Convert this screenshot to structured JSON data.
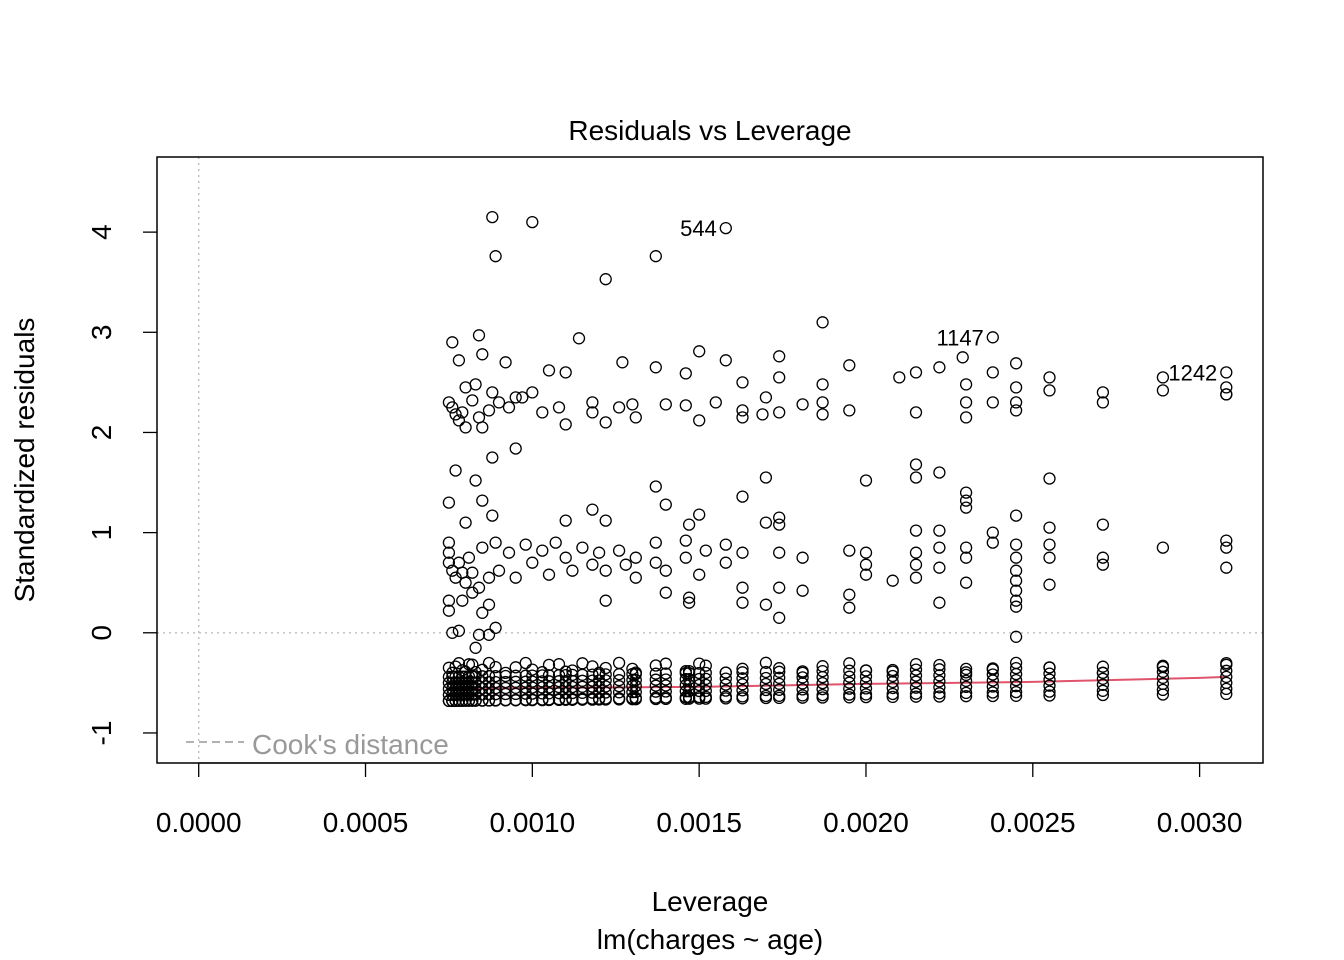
{
  "chart_data": {
    "type": "scatter",
    "title": "Residuals vs Leverage",
    "xlabel": "Leverage",
    "subtitle": "lm(charges ~ age)",
    "ylabel": "Standardized residuals",
    "xlim": [
      -0.000125,
      0.00319
    ],
    "ylim": [
      -1.3,
      4.75
    ],
    "x_ticks": [
      0.0,
      0.0005,
      0.001,
      0.0015,
      0.002,
      0.0025,
      0.003
    ],
    "x_tick_labels": [
      "0.0000",
      "0.0005",
      "0.0010",
      "0.0015",
      "0.0020",
      "0.0025",
      "0.0030"
    ],
    "y_ticks": [
      -1,
      0,
      1,
      2,
      3,
      4
    ],
    "y_tick_labels": [
      "-1",
      "0",
      "1",
      "2",
      "3",
      "4"
    ],
    "reference_lines": {
      "x": 0,
      "y": 0,
      "style": "dotted",
      "color": "#bebebe"
    },
    "legend": {
      "label": "Cook's distance",
      "position": "bottom-left",
      "line_style": "dashed",
      "color": "#999999"
    },
    "smooth_color": "#DF536B",
    "smooth": [
      [
        0.00075,
        -0.56
      ],
      [
        0.001,
        -0.55
      ],
      [
        0.0015,
        -0.54
      ],
      [
        0.002,
        -0.51
      ],
      [
        0.0025,
        -0.49
      ],
      [
        0.003,
        -0.45
      ],
      [
        0.00308,
        -0.44
      ]
    ],
    "labeled_points": [
      {
        "label": "544",
        "x": 0.00158,
        "y": 4.04
      },
      {
        "label": "1147",
        "x": 0.00238,
        "y": 2.95
      },
      {
        "label": "1242",
        "x": 0.00308,
        "y": 2.6
      }
    ],
    "points": [
      [
        0.00088,
        4.15
      ],
      [
        0.001,
        4.1
      ],
      [
        0.00089,
        3.76
      ],
      [
        0.00137,
        3.76
      ],
      [
        0.00122,
        3.53
      ],
      [
        0.00187,
        3.1
      ],
      [
        0.00084,
        2.97
      ],
      [
        0.00076,
        2.9
      ],
      [
        0.00114,
        2.94
      ],
      [
        0.0015,
        2.81
      ],
      [
        0.00127,
        2.7
      ],
      [
        0.00137,
        2.65
      ],
      [
        0.00158,
        2.72
      ],
      [
        0.00174,
        2.76
      ],
      [
        0.00195,
        2.67
      ],
      [
        0.00229,
        2.75
      ],
      [
        0.00245,
        2.69
      ],
      [
        0.00085,
        2.78
      ],
      [
        0.00078,
        2.72
      ],
      [
        0.00092,
        2.7
      ],
      [
        0.0008,
        2.45
      ],
      [
        0.00083,
        2.48
      ],
      [
        0.00088,
        2.4
      ],
      [
        0.00095,
        2.35
      ],
      [
        0.001,
        2.4
      ],
      [
        0.00105,
        2.62
      ],
      [
        0.0011,
        2.6
      ],
      [
        0.00146,
        2.59
      ],
      [
        0.00163,
        2.5
      ],
      [
        0.00174,
        2.55
      ],
      [
        0.00187,
        2.48
      ],
      [
        0.0021,
        2.55
      ],
      [
        0.00215,
        2.6
      ],
      [
        0.00222,
        2.65
      ],
      [
        0.0023,
        2.48
      ],
      [
        0.00238,
        2.6
      ],
      [
        0.00245,
        2.45
      ],
      [
        0.00255,
        2.55
      ],
      [
        0.00271,
        2.4
      ],
      [
        0.00289,
        2.55
      ],
      [
        0.00289,
        2.42
      ],
      [
        0.00308,
        2.45
      ],
      [
        0.00308,
        2.38
      ],
      [
        0.00075,
        2.3
      ],
      [
        0.00076,
        2.25
      ],
      [
        0.00077,
        2.18
      ],
      [
        0.00078,
        2.12
      ],
      [
        0.00079,
        2.2
      ],
      [
        0.0008,
        2.05
      ],
      [
        0.00082,
        2.32
      ],
      [
        0.00084,
        2.15
      ],
      [
        0.00085,
        2.05
      ],
      [
        0.00087,
        2.22
      ],
      [
        0.0009,
        2.3
      ],
      [
        0.00093,
        2.25
      ],
      [
        0.00097,
        2.35
      ],
      [
        0.00103,
        2.2
      ],
      [
        0.00108,
        2.25
      ],
      [
        0.0011,
        2.08
      ],
      [
        0.00118,
        2.3
      ],
      [
        0.00118,
        2.2
      ],
      [
        0.00122,
        2.1
      ],
      [
        0.00126,
        2.25
      ],
      [
        0.0013,
        2.28
      ],
      [
        0.00131,
        2.15
      ],
      [
        0.0014,
        2.28
      ],
      [
        0.00146,
        2.27
      ],
      [
        0.0015,
        2.12
      ],
      [
        0.00155,
        2.3
      ],
      [
        0.00163,
        2.22
      ],
      [
        0.00163,
        2.15
      ],
      [
        0.00169,
        2.18
      ],
      [
        0.0017,
        2.35
      ],
      [
        0.00174,
        2.2
      ],
      [
        0.00181,
        2.28
      ],
      [
        0.00187,
        2.3
      ],
      [
        0.00187,
        2.18
      ],
      [
        0.00195,
        2.22
      ],
      [
        0.00215,
        2.2
      ],
      [
        0.0023,
        2.3
      ],
      [
        0.0023,
        2.15
      ],
      [
        0.00238,
        2.3
      ],
      [
        0.00245,
        2.3
      ],
      [
        0.00245,
        2.22
      ],
      [
        0.00255,
        2.42
      ],
      [
        0.00271,
        2.3
      ],
      [
        0.00308,
        2.38
      ],
      [
        0.00077,
        1.62
      ],
      [
        0.00083,
        1.52
      ],
      [
        0.00088,
        1.75
      ],
      [
        0.00095,
        1.84
      ],
      [
        0.00075,
        1.3
      ],
      [
        0.00085,
        1.32
      ],
      [
        0.00088,
        1.17
      ],
      [
        0.0008,
        1.1
      ],
      [
        0.00137,
        1.46
      ],
      [
        0.0014,
        1.28
      ],
      [
        0.00118,
        1.23
      ],
      [
        0.00122,
        1.12
      ],
      [
        0.0011,
        1.12
      ],
      [
        0.00147,
        1.08
      ],
      [
        0.0015,
        1.18
      ],
      [
        0.00163,
        1.36
      ],
      [
        0.0017,
        1.55
      ],
      [
        0.0017,
        1.1
      ],
      [
        0.00174,
        1.15
      ],
      [
        0.00174,
        1.08
      ],
      [
        0.002,
        1.52
      ],
      [
        0.00215,
        1.68
      ],
      [
        0.00215,
        1.55
      ],
      [
        0.00222,
        1.6
      ],
      [
        0.0023,
        1.4
      ],
      [
        0.0023,
        1.32
      ],
      [
        0.0023,
        1.25
      ],
      [
        0.00215,
        1.02
      ],
      [
        0.00222,
        1.02
      ],
      [
        0.00238,
        1.0
      ],
      [
        0.00245,
        1.17
      ],
      [
        0.00255,
        1.54
      ],
      [
        0.00255,
        1.05
      ],
      [
        0.00271,
        1.08
      ],
      [
        0.00075,
        0.9
      ],
      [
        0.00075,
        0.8
      ],
      [
        0.00075,
        0.7
      ],
      [
        0.00076,
        0.62
      ],
      [
        0.00077,
        0.55
      ],
      [
        0.00078,
        0.7
      ],
      [
        0.00079,
        0.6
      ],
      [
        0.0008,
        0.5
      ],
      [
        0.00081,
        0.75
      ],
      [
        0.00082,
        0.6
      ],
      [
        0.00084,
        0.45
      ],
      [
        0.00085,
        0.85
      ],
      [
        0.00087,
        0.55
      ],
      [
        0.00089,
        0.9
      ],
      [
        0.0009,
        0.62
      ],
      [
        0.00093,
        0.8
      ],
      [
        0.00095,
        0.55
      ],
      [
        0.00098,
        0.88
      ],
      [
        0.001,
        0.7
      ],
      [
        0.00103,
        0.82
      ],
      [
        0.00105,
        0.58
      ],
      [
        0.00107,
        0.9
      ],
      [
        0.0011,
        0.75
      ],
      [
        0.00112,
        0.62
      ],
      [
        0.00115,
        0.85
      ],
      [
        0.00118,
        0.68
      ],
      [
        0.0012,
        0.8
      ],
      [
        0.00122,
        0.62
      ],
      [
        0.00126,
        0.82
      ],
      [
        0.00128,
        0.68
      ],
      [
        0.00131,
        0.75
      ],
      [
        0.00131,
        0.55
      ],
      [
        0.00137,
        0.9
      ],
      [
        0.00137,
        0.7
      ],
      [
        0.0014,
        0.62
      ],
      [
        0.00146,
        0.92
      ],
      [
        0.00146,
        0.75
      ],
      [
        0.0015,
        0.58
      ],
      [
        0.00152,
        0.82
      ],
      [
        0.00158,
        0.88
      ],
      [
        0.00158,
        0.7
      ],
      [
        0.00163,
        0.8
      ],
      [
        0.00163,
        0.45
      ],
      [
        0.00174,
        0.8
      ],
      [
        0.00174,
        0.45
      ],
      [
        0.00181,
        0.75
      ],
      [
        0.00195,
        0.82
      ],
      [
        0.002,
        0.8
      ],
      [
        0.002,
        0.68
      ],
      [
        0.002,
        0.58
      ],
      [
        0.00208,
        0.52
      ],
      [
        0.00215,
        0.8
      ],
      [
        0.00215,
        0.68
      ],
      [
        0.00215,
        0.55
      ],
      [
        0.00222,
        0.85
      ],
      [
        0.00222,
        0.65
      ],
      [
        0.0023,
        0.85
      ],
      [
        0.0023,
        0.75
      ],
      [
        0.0023,
        0.5
      ],
      [
        0.00238,
        0.9
      ],
      [
        0.00245,
        0.88
      ],
      [
        0.00245,
        0.75
      ],
      [
        0.00245,
        0.62
      ],
      [
        0.00245,
        0.52
      ],
      [
        0.00245,
        0.42
      ],
      [
        0.00255,
        0.88
      ],
      [
        0.00255,
        0.75
      ],
      [
        0.00255,
        0.48
      ],
      [
        0.00271,
        0.75
      ],
      [
        0.00271,
        0.68
      ],
      [
        0.00289,
        0.85
      ],
      [
        0.00308,
        0.92
      ],
      [
        0.00308,
        0.85
      ],
      [
        0.00308,
        0.65
      ],
      [
        0.00075,
        0.32
      ],
      [
        0.00075,
        0.22
      ],
      [
        0.00079,
        0.32
      ],
      [
        0.00082,
        0.4
      ],
      [
        0.00085,
        0.2
      ],
      [
        0.00087,
        0.28
      ],
      [
        0.00089,
        0.05
      ],
      [
        0.00078,
        0.02
      ],
      [
        0.00084,
        -0.02
      ],
      [
        0.00076,
        0.0
      ],
      [
        0.00087,
        -0.02
      ],
      [
        0.00083,
        -0.15
      ],
      [
        0.00122,
        0.32
      ],
      [
        0.0014,
        0.4
      ],
      [
        0.00147,
        0.35
      ],
      [
        0.00147,
        0.3
      ],
      [
        0.00163,
        0.3
      ],
      [
        0.0017,
        0.28
      ],
      [
        0.00174,
        0.15
      ],
      [
        0.00181,
        0.42
      ],
      [
        0.00195,
        0.25
      ],
      [
        0.00195,
        0.38
      ],
      [
        0.00222,
        0.3
      ],
      [
        0.00245,
        0.32
      ],
      [
        0.00245,
        0.26
      ],
      [
        0.00245,
        -0.04
      ]
    ],
    "bottom_band_x": [
      0.00075,
      0.00076,
      0.00077,
      0.00078,
      0.00079,
      0.0008,
      0.00081,
      0.00082,
      0.00083,
      0.00085,
      0.00087,
      0.00089,
      0.00092,
      0.00095,
      0.00098,
      0.001,
      0.00103,
      0.00105,
      0.00108,
      0.0011,
      0.00112,
      0.00115,
      0.00118,
      0.0012,
      0.00122,
      0.00126,
      0.0013,
      0.00131,
      0.00137,
      0.0014,
      0.00146,
      0.00147,
      0.0015,
      0.00152,
      0.00158,
      0.00163,
      0.0017,
      0.00174,
      0.00181,
      0.00187,
      0.00195,
      0.002,
      0.00208,
      0.00215,
      0.00222,
      0.0023,
      0.00238,
      0.00245,
      0.00255,
      0.00271,
      0.00289,
      0.00308
    ]
  }
}
